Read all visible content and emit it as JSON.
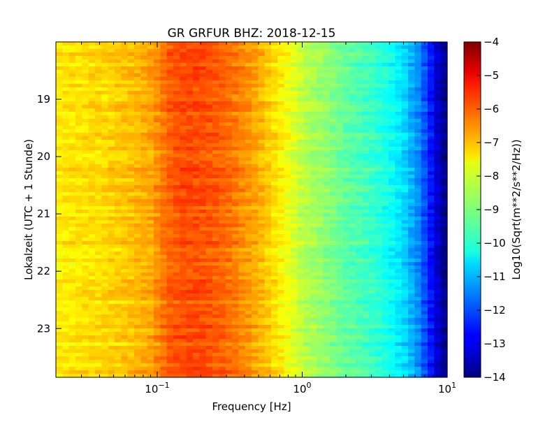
{
  "chart_data": {
    "type": "heatmap",
    "title": "GR GRFUR BHZ: 2018-12-15",
    "xlabel": "Frequency [Hz]",
    "ylabel": "Lokalzeit (UTC + 1 Stunde)",
    "x_scale": "log",
    "xlim": [
      0.02,
      10
    ],
    "ylim": [
      18.0,
      23.85
    ],
    "y_inverted": true,
    "x_ticks": [
      {
        "value": 0.1,
        "base": "10",
        "exp": "−1"
      },
      {
        "value": 1,
        "base": "10",
        "exp": "0"
      },
      {
        "value": 10,
        "base": "10",
        "exp": "1"
      }
    ],
    "y_ticks": [
      {
        "value": 19,
        "label": "19"
      },
      {
        "value": 20,
        "label": "20"
      },
      {
        "value": 21,
        "label": "21"
      },
      {
        "value": 22,
        "label": "22"
      },
      {
        "value": 23,
        "label": "23"
      }
    ],
    "colorbar": {
      "label": "Log10(Sqrt(m**2/s**2/Hz))",
      "colormap": "jet",
      "range": [
        -14,
        -4
      ],
      "ticks": [
        "−4",
        "−5",
        "−6",
        "−7",
        "−8",
        "−9",
        "−10",
        "−11",
        "−12",
        "−13",
        "−14"
      ]
    },
    "spectrum_profile": {
      "frequency_hz": [
        0.02,
        0.04,
        0.06,
        0.09,
        0.12,
        0.15,
        0.2,
        0.3,
        0.45,
        0.6,
        0.8,
        1.0,
        1.5,
        2.0,
        3.0,
        4.0,
        5.0,
        6.5,
        8.0,
        9.0,
        10.0
      ],
      "level": [
        -7.6,
        -7.4,
        -7.2,
        -6.9,
        -6.2,
        -6.0,
        -6.0,
        -6.3,
        -6.8,
        -7.3,
        -7.9,
        -8.4,
        -8.9,
        -9.3,
        -9.7,
        -10.1,
        -10.6,
        -11.5,
        -12.8,
        -13.6,
        -14.0
      ]
    }
  }
}
